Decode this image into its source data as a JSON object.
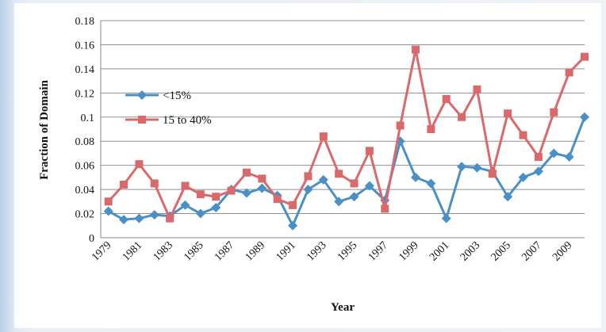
{
  "chart_data": {
    "type": "line",
    "title": "",
    "xlabel": "Year",
    "ylabel": "Fraction of Domain",
    "x": [
      1979,
      1980,
      1981,
      1982,
      1983,
      1984,
      1985,
      1986,
      1987,
      1988,
      1989,
      1990,
      1991,
      1992,
      1993,
      1994,
      1995,
      1996,
      1997,
      1998,
      1999,
      2000,
      2001,
      2002,
      2003,
      2004,
      2005,
      2006,
      2007,
      2008,
      2009,
      2010
    ],
    "x_tick_labels": [
      "1979",
      "1981",
      "1983",
      "1985",
      "1987",
      "1989",
      "1991",
      "1993",
      "1995",
      "1997",
      "1999",
      "2001",
      "2003",
      "2005",
      "2007",
      "2009"
    ],
    "ylim": [
      0,
      0.18
    ],
    "y_tick_labels": [
      "0",
      "0.02",
      "0.04",
      "0.06",
      "0.08",
      "0.1",
      "0.12",
      "0.14",
      "0.16",
      "0.18"
    ],
    "grid": "horizontal",
    "legend_position": "left",
    "series": [
      {
        "name": "<15%",
        "color": "#4a90c8",
        "marker": "diamond",
        "values": [
          0.022,
          0.015,
          0.016,
          0.019,
          0.018,
          0.027,
          0.02,
          0.025,
          0.04,
          0.037,
          0.041,
          0.035,
          0.01,
          0.04,
          0.048,
          0.03,
          0.034,
          0.043,
          0.031,
          0.08,
          0.05,
          0.045,
          0.016,
          0.059,
          0.058,
          0.055,
          0.034,
          0.05,
          0.055,
          0.07,
          0.067,
          0.1
        ]
      },
      {
        "name": "15 to 40%",
        "color": "#d9696a",
        "marker": "square",
        "values": [
          0.03,
          0.044,
          0.061,
          0.045,
          0.016,
          0.043,
          0.036,
          0.034,
          0.039,
          0.054,
          0.049,
          0.032,
          0.027,
          0.051,
          0.084,
          0.053,
          0.045,
          0.072,
          0.024,
          0.093,
          0.156,
          0.09,
          0.115,
          0.1,
          0.123,
          0.053,
          0.103,
          0.085,
          0.067,
          0.104,
          0.137,
          0.15
        ]
      }
    ]
  }
}
